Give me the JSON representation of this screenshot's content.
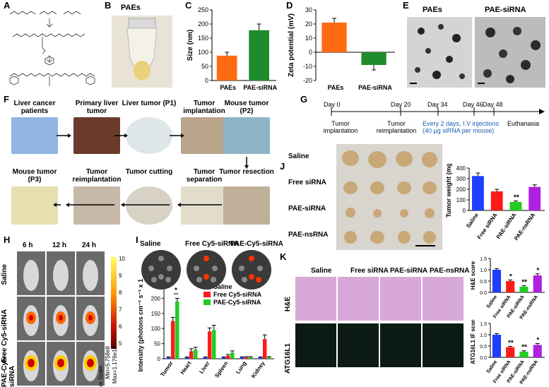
{
  "panels": {
    "A": "A",
    "B": "B",
    "C": "C",
    "D": "D",
    "E": "E",
    "F": "F",
    "G": "G",
    "H": "H",
    "I": "I",
    "J": "J",
    "K": "K"
  },
  "panelB": {
    "title": "PAEs"
  },
  "panelE": {
    "left": "PAEs",
    "right": "PAE-siRNA"
  },
  "panelF": {
    "row1": [
      "Liver cancer patients",
      "Primary liver tumor",
      "Liver tumor (P1)",
      "Tumor implantation",
      "Mouse tumor (P2)"
    ],
    "row2": [
      "Mouse tumor (P3)",
      "Tumor reimplantation",
      "Tumor cutting",
      "Tumor separation",
      "Tumor resection"
    ]
  },
  "panelG": {
    "days": [
      "Day 0",
      "Day 20",
      "Day 34",
      "Day 46",
      "Day 48"
    ],
    "below": [
      "Tumor implantation",
      "Tumor reimplantation",
      "Every 2 days, I.V injections (40 µg siRNA per mouse)",
      "Euthanasia"
    ]
  },
  "panelH": {
    "times": [
      "6 h",
      "12 h",
      "24 h"
    ],
    "rows": [
      "Saline",
      "Free Cy5-siRNA",
      "PAE-Cy5-siRNA"
    ],
    "scale_title": "Color Scale",
    "scale_min": "Min=5.758e8",
    "scale_max": "Max=1.176e10",
    "scale_ticks": [
      "10",
      "9",
      "8",
      "7",
      "6",
      "5"
    ]
  },
  "panelI": {
    "headers": [
      "Saline",
      "Free Cy5-siRNA",
      "PAE-Cy5-siRNA"
    ],
    "organs": [
      "Liver",
      "Heart",
      "Lung",
      "Spleen",
      "Tumor",
      "Kidney"
    ]
  },
  "panelJ": {
    "rows": [
      "Saline",
      "Free siRNA",
      "PAE-siRNA",
      "PAE-nsRNA"
    ]
  },
  "panelK": {
    "cols": [
      "Saline",
      "Free siRNA",
      "PAE-siRNA",
      "PAE-nsRNA"
    ],
    "rows": [
      "H&E",
      "ATG16L1"
    ]
  },
  "chart_data": [
    {
      "id": "C",
      "type": "bar",
      "categories": [
        "PAEs",
        "PAE-siRNA"
      ],
      "values": [
        88,
        178
      ],
      "errors": [
        12,
        22
      ],
      "colors": [
        "#ff6a13",
        "#1e8c2c"
      ],
      "ylabel": "Size (nm)",
      "ylim": [
        0,
        250
      ],
      "yticks": [
        "0",
        "50",
        "100",
        "150",
        "200",
        "250"
      ]
    },
    {
      "id": "D",
      "type": "bar",
      "categories": [
        "PAEs",
        "PAE-siRNA"
      ],
      "values": [
        21,
        -9
      ],
      "errors": [
        3,
        3.5
      ],
      "colors": [
        "#ff6a13",
        "#1e8c2c"
      ],
      "ylabel": "Zeta potential (mV)",
      "ylim": [
        -20,
        30
      ],
      "yticks": [
        "-20",
        "-10",
        "0",
        "10",
        "20",
        "30"
      ]
    },
    {
      "id": "I",
      "type": "bar",
      "categories": [
        "Tumor",
        "Heart",
        "Liver",
        "Spleen",
        "Lung",
        "Kidney"
      ],
      "series": [
        {
          "name": "Saline",
          "values": [
            5,
            5,
            5,
            5,
            5,
            5
          ],
          "errors": [
            1,
            1,
            1,
            1,
            1,
            1
          ],
          "color": "#1f3fff"
        },
        {
          "name": "Free Cy5-siRNA",
          "values": [
            125,
            25,
            90,
            10,
            5,
            65
          ],
          "errors": [
            12,
            8,
            12,
            4,
            2,
            14
          ],
          "color": "#ff1a1a"
        },
        {
          "name": "PAE-Cy5-siRNA",
          "values": [
            190,
            30,
            95,
            20,
            5,
            5
          ],
          "errors": [
            10,
            8,
            16,
            6,
            2,
            2
          ],
          "color": "#22cc22"
        }
      ],
      "ylabel": "Intensity (photons cm⁻² s⁻¹ x 10⁸)",
      "ylim": [
        0,
        250
      ],
      "yticks": [
        "0",
        "50",
        "100",
        "150",
        "200",
        "250"
      ],
      "annotation": "*"
    },
    {
      "id": "J",
      "type": "bar",
      "categories": [
        "Saline",
        "Free siRNA",
        "PAE-siRNA",
        "PAE-nsRNA"
      ],
      "values": [
        325,
        180,
        80,
        222
      ],
      "errors": [
        28,
        20,
        10,
        20
      ],
      "colors": [
        "#1f3fff",
        "#ff1a1a",
        "#22cc22",
        "#b020e0"
      ],
      "ylabel": "Tumor weight (mg)",
      "ylim": [
        0,
        400
      ],
      "yticks": [
        "0",
        "100",
        "200",
        "300",
        "400"
      ],
      "sig": [
        "",
        "",
        "**",
        ""
      ]
    },
    {
      "id": "K1",
      "type": "bar",
      "categories": [
        "Saline",
        "Free siRNA",
        "PAE-siRNA",
        "PAE-nsRNA"
      ],
      "values": [
        1.0,
        0.5,
        0.25,
        0.75
      ],
      "errors": [
        0.05,
        0.05,
        0.05,
        0.07
      ],
      "colors": [
        "#1f3fff",
        "#ff1a1a",
        "#22cc22",
        "#b020e0"
      ],
      "ylabel": "H&E score",
      "ylim": [
        0,
        1.5
      ],
      "yticks": [
        "0.0",
        "0.5",
        "1.0",
        "1.5"
      ],
      "sig": [
        "",
        "*",
        "**",
        "*"
      ]
    },
    {
      "id": "K2",
      "type": "bar",
      "categories": [
        "Saline",
        "Free siRNA",
        "PAE-siRNA",
        "PAE-nsRNA"
      ],
      "values": [
        1.0,
        0.45,
        0.25,
        0.55
      ],
      "errors": [
        0.05,
        0.04,
        0.04,
        0.06
      ],
      "colors": [
        "#1f3fff",
        "#ff1a1a",
        "#22cc22",
        "#b020e0"
      ],
      "ylabel": "ATG16L1 IF score",
      "ylim": [
        0,
        1.5
      ],
      "yticks": [
        "0.0",
        "0.5",
        "1.0",
        "1.5"
      ],
      "sig": [
        "",
        "**",
        "**",
        "*"
      ]
    }
  ]
}
